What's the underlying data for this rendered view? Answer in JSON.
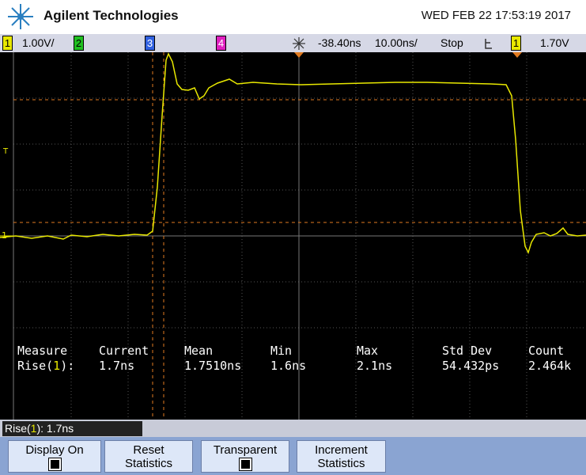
{
  "header": {
    "brand": "Agilent Technologies",
    "datetime": "WED FEB 22 17:53:19 2017"
  },
  "status_bar": {
    "ch1_num": "1",
    "ch1_scale": "1.00V/",
    "ch2_num": "2",
    "ch3_num": "3",
    "ch4_num": "4",
    "delay": "-38.40ns",
    "timebase": "10.00ns/",
    "run_state": "Stop",
    "trigger_source": "1",
    "trigger_level": "1.70V"
  },
  "markers": {
    "trigger": "T",
    "ground": "1"
  },
  "measurements": {
    "header": [
      "Measure",
      "Current",
      "Mean",
      "Min",
      "Max",
      "Std Dev",
      "Count"
    ],
    "row": {
      "label_start": "Rise(",
      "label_channel": "1",
      "label_end": "):",
      "values": [
        "1.7ns",
        "1.7510ns",
        "1.6ns",
        "2.1ns",
        "54.432ps",
        "2.464k"
      ]
    }
  },
  "active_measure": {
    "start": "Rise(",
    "channel": "1",
    "end": "): 1.7ns"
  },
  "softkeys": [
    {
      "lines": [
        "Display On"
      ]
    },
    {
      "lines": [
        "Reset",
        "Statistics"
      ]
    },
    {
      "lines": [
        "Transparent"
      ]
    },
    {
      "lines": [
        "Increment",
        "Statistics"
      ]
    }
  ]
}
